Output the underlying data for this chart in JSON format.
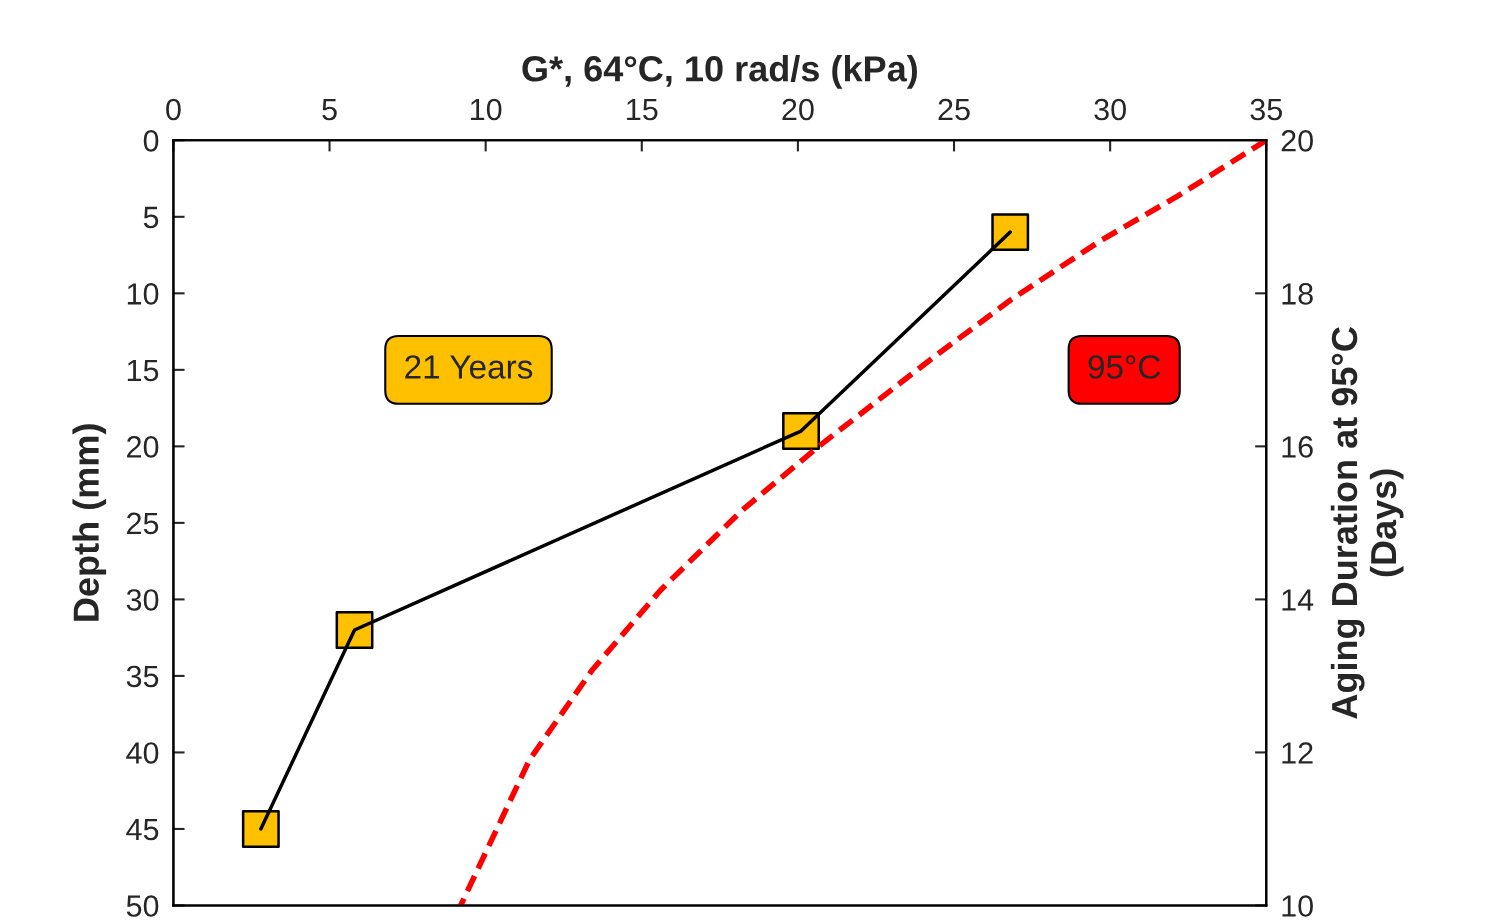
{
  "chart_data": {
    "type": "line",
    "xlabel": "G*, 64°C, 10 rad/s (kPa)",
    "ylabel": "Depth (mm)",
    "y2label": "Aging Duration at 95°C\n(Days)",
    "xlim": [
      0,
      35
    ],
    "xticks": [
      0,
      5,
      10,
      15,
      20,
      25,
      30,
      35
    ],
    "ylim": [
      50,
      0
    ],
    "yticks": [
      0,
      5,
      10,
      15,
      20,
      25,
      30,
      35,
      40,
      45,
      50
    ],
    "y2lim": [
      10,
      20
    ],
    "y2ticks": [
      10,
      12,
      14,
      16,
      18,
      20
    ],
    "grid": false,
    "legend": false,
    "annotations": [
      "21 Years",
      "95°C"
    ],
    "series": [
      {
        "color": "#ffc000",
        "marker": "square",
        "line_style": "solid",
        "x": [
          26.8,
          20.1,
          5.8,
          2.8
        ],
        "values": [
          6,
          19,
          32,
          45
        ]
      },
      {
        "axis": "y2",
        "color": "#ff0000",
        "marker": "none",
        "line_style": "dashed",
        "x": [
          35,
          32.2,
          29.7,
          26.8,
          24.2,
          20.7,
          18.2,
          15.6,
          13.4,
          11.4,
          9.2
        ],
        "values": [
          20,
          19.28,
          18.69,
          17.91,
          17.12,
          16.01,
          15.16,
          14.12,
          13.07,
          11.9,
          10
        ]
      }
    ]
  }
}
